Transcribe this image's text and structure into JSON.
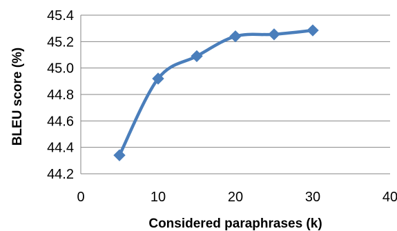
{
  "chart_data": {
    "type": "line",
    "title": "",
    "xlabel": "Considered paraphrases (k)",
    "ylabel": "BLEU score (%)",
    "xlim": [
      0,
      40
    ],
    "ylim": [
      44.2,
      45.4
    ],
    "x_ticks": [
      0,
      10,
      20,
      30,
      40
    ],
    "x_tick_labels": [
      "0",
      "10",
      "20",
      "30",
      "40"
    ],
    "y_ticks": [
      44.2,
      44.4,
      44.6,
      44.8,
      45.0,
      45.2,
      45.4
    ],
    "y_tick_labels": [
      "44.2",
      "44.4",
      "44.6",
      "44.8",
      "45.0",
      "45.2",
      "45.4"
    ],
    "grid": "horizontal",
    "legend": "none",
    "marker": "diamond",
    "smooth": true,
    "series": [
      {
        "x": [
          5,
          10,
          15,
          20,
          25,
          30
        ],
        "y": [
          44.34,
          44.92,
          45.09,
          45.24,
          45.255,
          45.285
        ],
        "color": "#4a7ebb"
      }
    ]
  }
}
